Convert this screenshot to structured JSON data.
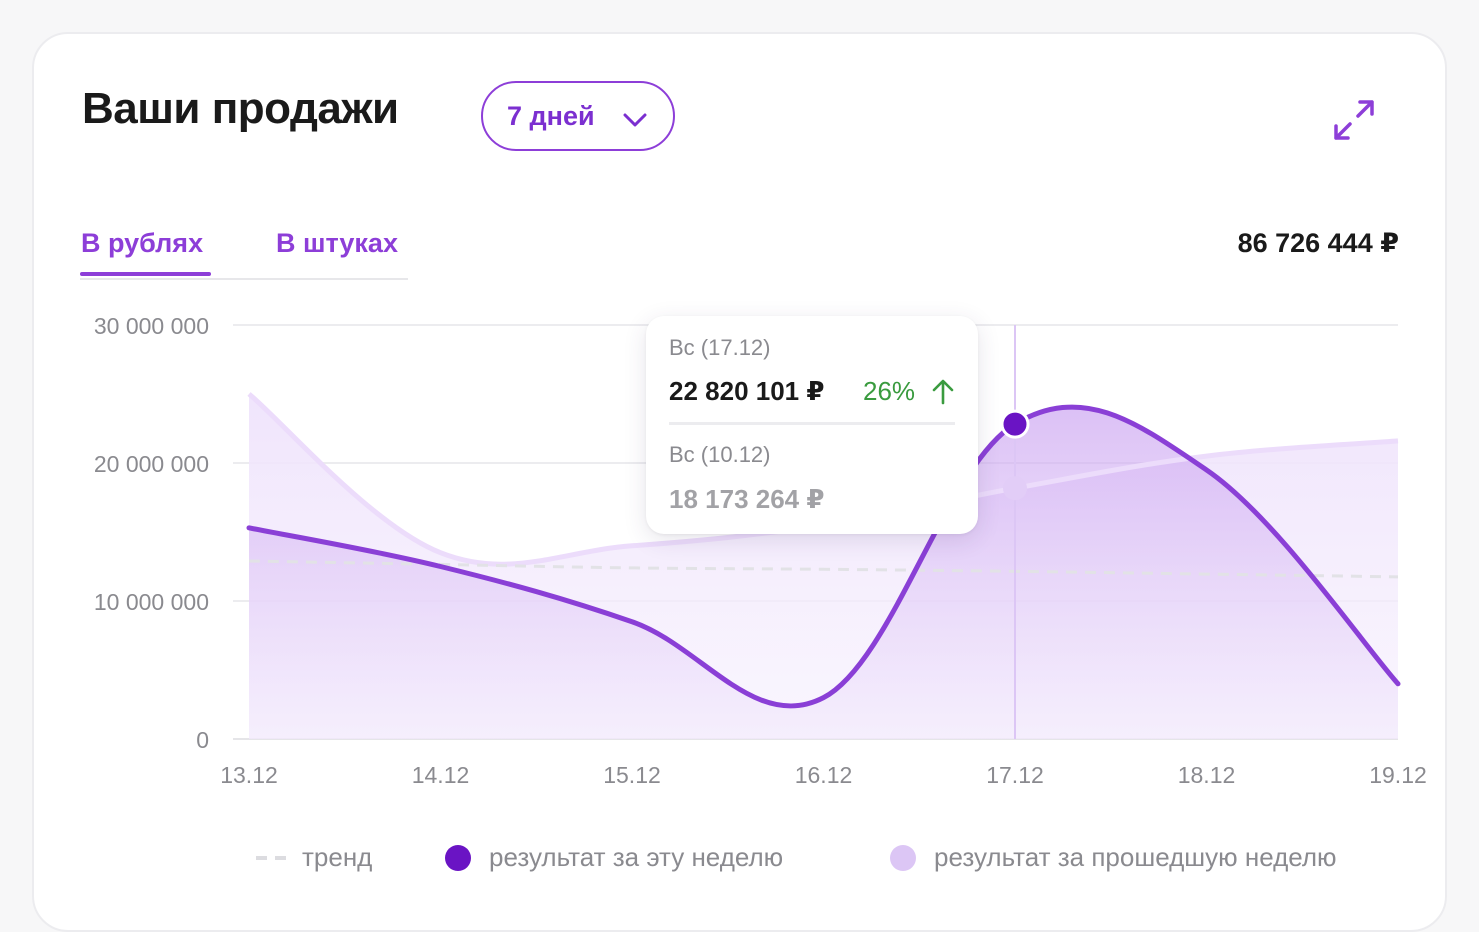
{
  "header": {
    "title": "Ваши продажи",
    "period_label": "7 дней",
    "expand_icon": "expand-arrows-icon"
  },
  "tabs": [
    {
      "label": "В рублях",
      "active": true
    },
    {
      "label": "В штуках",
      "active": false
    }
  ],
  "total": "86 726 444 ₽",
  "colors": {
    "accent": "#8d3ed8",
    "this_week": "#8a3fd6",
    "this_week_dot": "#6a14c4",
    "last_week": "#ecdcfb",
    "trend": "#e2e2e6",
    "positive": "#3a9b3f"
  },
  "tooltip": {
    "day_current": "Вс (17.12)",
    "value_current": "22 820 101 ₽",
    "change": "26%",
    "change_direction": "up",
    "day_previous": "Вс (10.12)",
    "value_previous": "18 173 264 ₽"
  },
  "legend": {
    "trend": "тренд",
    "this_week": "результат за эту неделю",
    "last_week": "результат за прошедшую неделю"
  },
  "chart_data": {
    "type": "area",
    "categories": [
      "13.12",
      "14.12",
      "15.12",
      "16.12",
      "17.12",
      "18.12",
      "19.12"
    ],
    "y_tick_labels": [
      "0",
      "10 000 000",
      "20 000 000",
      "30 000 000"
    ],
    "y_ticks": [
      0,
      10000000,
      20000000,
      30000000
    ],
    "ylim": [
      0,
      30000000
    ],
    "grid": true,
    "highlight_index": 4,
    "series": [
      {
        "name": "результат за эту неделю",
        "values": [
          15300000,
          12500000,
          8500000,
          3000000,
          22820101,
          19500000,
          4000000
        ]
      },
      {
        "name": "результат за прошедшую неделю",
        "values": [
          25000000,
          13500000,
          14000000,
          15500000,
          18173264,
          20500000,
          21600000
        ]
      },
      {
        "name": "тренд",
        "values": [
          12900000,
          12650000,
          12400000,
          12300000,
          12150000,
          11950000,
          11750000
        ]
      }
    ]
  }
}
